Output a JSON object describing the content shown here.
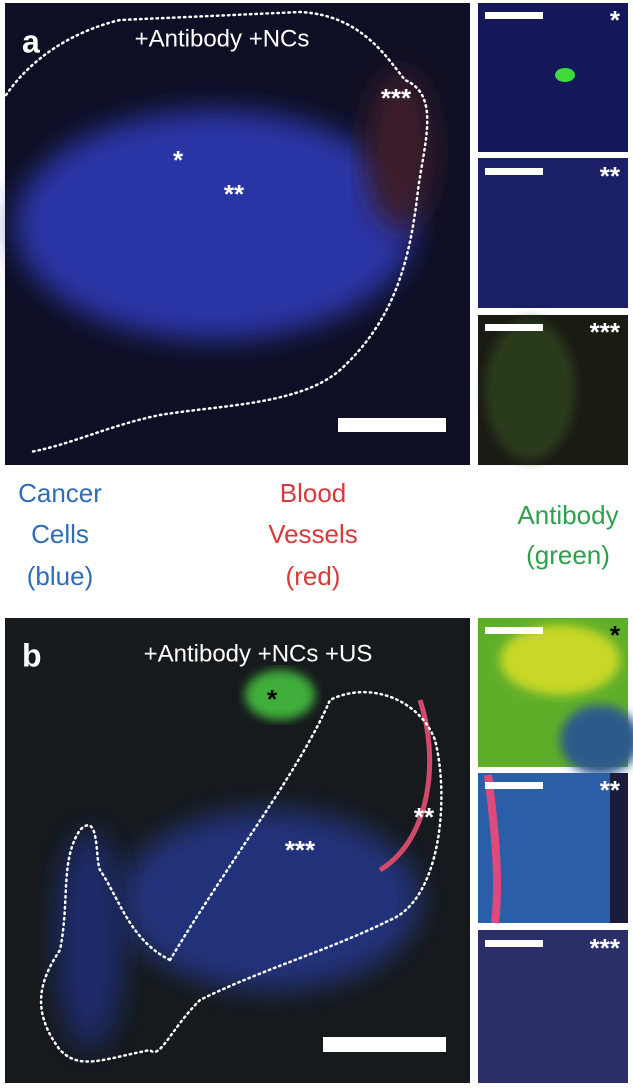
{
  "panels": [
    {
      "label": "a",
      "title": "+Antibody +NCs",
      "markers": [
        "*",
        "**",
        "***"
      ],
      "insets": [
        "*",
        "**",
        "***"
      ]
    },
    {
      "label": "b",
      "title": "+Antibody +NCs +US",
      "markers": [
        "*",
        "**",
        "***"
      ],
      "insets": [
        "*",
        "**",
        "***"
      ]
    }
  ],
  "legend": [
    {
      "lines": [
        "Cancer",
        "Cells",
        "(blue)"
      ]
    },
    {
      "lines": [
        "Blood",
        "Vessels",
        "(red)"
      ]
    },
    {
      "lines": [
        "Antibody",
        "(green)"
      ]
    }
  ]
}
